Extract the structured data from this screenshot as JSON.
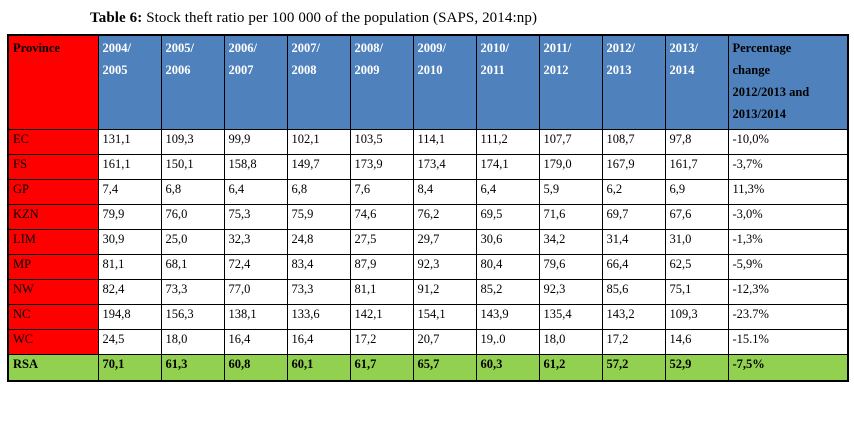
{
  "caption": {
    "label": "Table 6:",
    "text": " Stock theft ratio per 100 000 of the population (SAPS, 2014:np)"
  },
  "colors": {
    "header_blue": "#4f81bd",
    "province_red": "#ff0000",
    "total_green": "#92d050"
  },
  "table": {
    "header": {
      "province": "Province",
      "years": [
        "2004/\n2005",
        "2005/\n2006",
        "2006/\n2007",
        "2007/\n2008",
        "2008/\n2009",
        "2009/\n2010",
        "2010/\n2011",
        "2011/\n2012",
        "2012/\n2013",
        "2013/\n2014"
      ],
      "pct_change": "Percentage\nchange\n2012/2013  and\n2013/2014"
    },
    "rows": [
      {
        "province": "EC",
        "values": [
          "131,1",
          "109,3",
          "99,9",
          "102,1",
          "103,5",
          "114,1",
          "111,2",
          "107,7",
          "108,7",
          "97,8"
        ],
        "pct": "-10,0%"
      },
      {
        "province": "FS",
        "values": [
          "161,1",
          "150,1",
          "158,8",
          "149,7",
          "173,9",
          "173,4",
          "174,1",
          "179,0",
          "167,9",
          "161,7"
        ],
        "pct": "-3,7%"
      },
      {
        "province": "GP",
        "values": [
          "7,4",
          "6,8",
          "6,4",
          "6,8",
          "7,6",
          "8,4",
          "6,4",
          "5,9",
          "6,2",
          "6,9"
        ],
        "pct": "11,3%"
      },
      {
        "province": "KZN",
        "values": [
          "79,9",
          "76,0",
          "75,3",
          "75,9",
          "74,6",
          "76,2",
          "69,5",
          "71,6",
          "69,7",
          "67,6"
        ],
        "pct": "-3,0%"
      },
      {
        "province": "LIM",
        "values": [
          "30,9",
          "25,0",
          "32,3",
          "24,8",
          "27,5",
          "29,7",
          "30,6",
          "34,2",
          "31,4",
          "31,0"
        ],
        "pct": "-1,3%"
      },
      {
        "province": "MP",
        "values": [
          "81,1",
          "68,1",
          "72,4",
          "83,4",
          "87,9",
          "92,3",
          "80,4",
          "79,6",
          "66,4",
          "62,5"
        ],
        "pct": "-5,9%"
      },
      {
        "province": "NW",
        "values": [
          "82,4",
          "73,3",
          "77,0",
          "73,3",
          "81,1",
          "91,2",
          "85,2",
          "92,3",
          "85,6",
          "75,1"
        ],
        "pct": "-12,3%"
      },
      {
        "province": "NC",
        "values": [
          "194,8",
          "156,3",
          "138,1",
          "133,6",
          "142,1",
          "154,1",
          "143,9",
          "135,4",
          "143,2",
          "109,3"
        ],
        "pct": "-23.7%"
      },
      {
        "province": "WC",
        "values": [
          "24,5",
          "18,0",
          "16,4",
          "16,4",
          "17,2",
          "20,7",
          "19,.0",
          "18,0",
          "17,2",
          "14,6"
        ],
        "pct": "-15.1%"
      }
    ],
    "total": {
      "province": "RSA",
      "values": [
        "70,1",
        "61,3",
        "60,8",
        "60,1",
        "61,7",
        "65,7",
        "60,3",
        "61,2",
        "57,2",
        "52,9"
      ],
      "pct": "-7,5%"
    }
  }
}
